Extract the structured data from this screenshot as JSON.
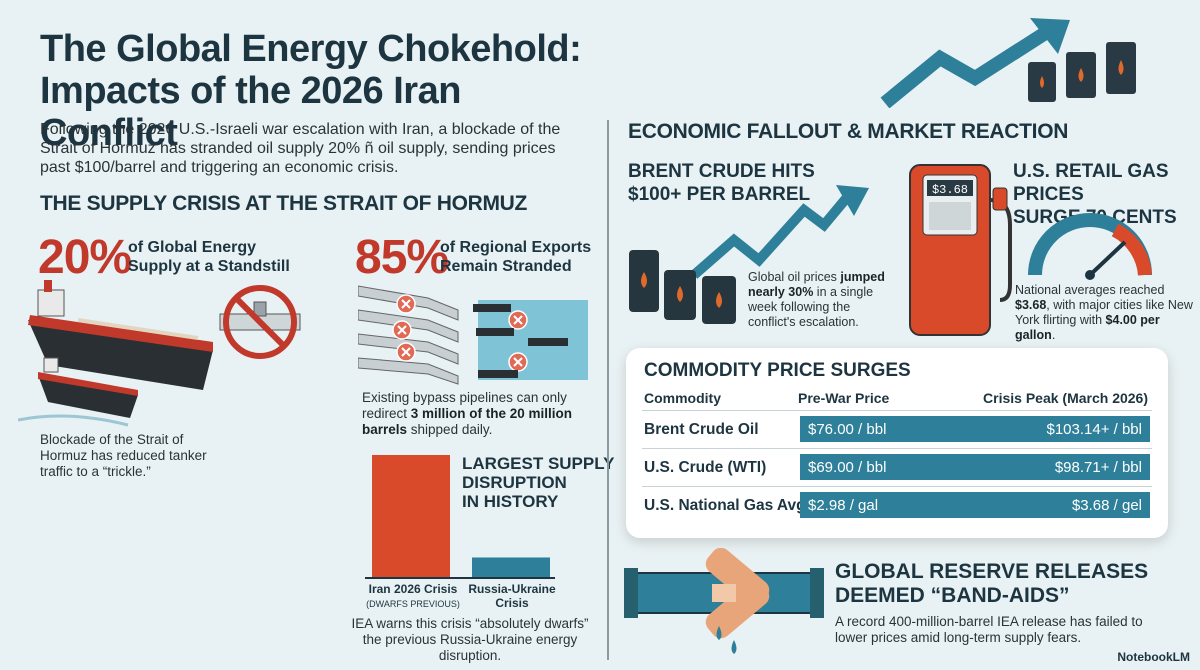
{
  "header": {
    "title_line1": "The Global Energy Chokehold:",
    "title_line2": "Impacts of the 2026 Iran Conflict",
    "intro": "Following the 2026 U.S.-Israeli war escalation with Iran, a blockade of the Strait of Hormuz has stranded oil supply 20% ñ oil supply, sending prices past $100/barrel and triggering an economic crisis."
  },
  "supply": {
    "heading": "THE SUPPLY CRISIS AT THE STRAIT OF HORMUZ",
    "stat1_value": "20%",
    "stat1_label_line1": "of Global Energy",
    "stat1_label_line2": "Supply at a Standstill",
    "stat2_value": "85%",
    "stat2_label_line1": "of Regional Exports",
    "stat2_label_line2": "Remain Stranded",
    "tanker_caption": "Blockade of the Strait of Hormuz has reduced tanker traffic to a “trickle.”",
    "pipeline_caption_pre": "Existing bypass pipelines can only redirect ",
    "pipeline_caption_bold": "3 million of the 20 million barrels",
    "pipeline_caption_post": " shipped daily.",
    "disruption_title_l1": "LARGEST SUPPLY",
    "disruption_title_l2": "DISRUPTION",
    "disruption_title_l3": "IN HISTORY",
    "bar1_label": "Iran 2026 Crisis",
    "bar1_sub": "(DWARFS PREVIOUS)",
    "bar2_label_l1": "Russia-Ukraine",
    "bar2_label_l2": "Crisis",
    "iea_caption": "IEA warns this crisis “absolutely dwarfs” the previous Russia-Ukraine energy disruption."
  },
  "chart_data": {
    "type": "bar",
    "categories": [
      "Iran 2026 Crisis",
      "Russia-Ukraine Crisis"
    ],
    "values": [
      1.0,
      0.16
    ],
    "title": "LARGEST SUPPLY DISRUPTION IN HISTORY",
    "colors": [
      "#d94a2b",
      "#2e7f99"
    ]
  },
  "economy": {
    "heading": "ECONOMIC FALLOUT & MARKET REACTION",
    "brent_title_l1": "BRENT CRUDE HITS",
    "brent_title_l2": "$100+ PER BARREL",
    "brent_caption_pre": "Global oil prices ",
    "brent_caption_bold": "jumped nearly 30%",
    "brent_caption_post": " in a single week following the conflict's escalation.",
    "gas_title_l1": "U.S. RETAIL GAS PRICES",
    "gas_title_l2": "SURGE 70 CENTS",
    "pump_display": "$3.68",
    "gas_caption_pre": "National averages reached ",
    "gas_caption_b1": "$3.68",
    "gas_caption_mid": ", with major cities like New York flirting with ",
    "gas_caption_b2": "$4.00 per gallon",
    "gas_caption_post": "."
  },
  "commodity": {
    "title": "COMMODITY PRICE SURGES",
    "col_commodity": "Commodity",
    "col_prewar": "Pre-War Price",
    "col_peak": "Crisis Peak (March 2026)",
    "rows": [
      {
        "name": "Brent Crude Oil",
        "pre": "$76.00 / bbl",
        "peak": "$103.14+ / bbl"
      },
      {
        "name": "U.S. Crude (WTI)",
        "pre": "$69.00 / bbl",
        "peak": "$98.71+ / bbl"
      },
      {
        "name": "U.S. National Gas Avg",
        "pre": "$2.98 / gal",
        "peak": "$3.68 / gel"
      }
    ]
  },
  "reserve": {
    "title_l1": "GLOBAL RESERVE RELEASES",
    "title_l2": "DEEMED “BAND-AIDS”",
    "caption": "A record 400-million-barrel IEA release has failed to lower prices amid long-term supply fears."
  },
  "brand": "NotebookLM",
  "colors": {
    "red": "#c0392b",
    "teal": "#2e7f99",
    "navy": "#1d3540",
    "orange": "#d94a2b"
  },
  "icons": [
    "tanker-ship-icon",
    "blocked-pipeline-icon",
    "oil-barrel-icon",
    "trend-arrow-icon",
    "gas-pump-icon",
    "gauge-icon",
    "bandaged-pipe-icon"
  ]
}
